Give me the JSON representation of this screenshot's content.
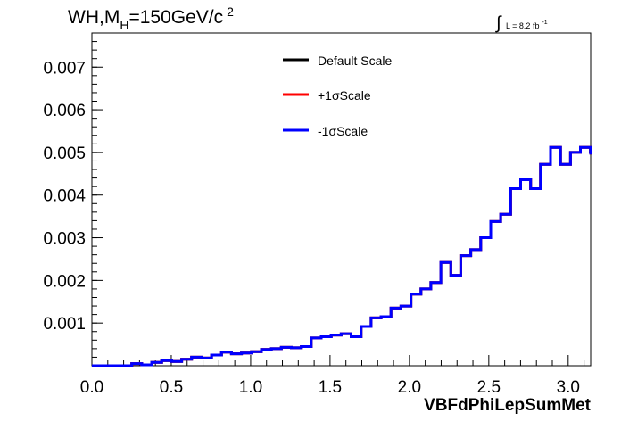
{
  "chart_data": {
    "type": "line",
    "title_main": "WH,M",
    "title_sub": "H",
    "title_rest": "=150GeV/c",
    "title_sup": "2",
    "lumi_prefix": "∫",
    "lumi_text": "L = 8.2 fb",
    "lumi_sup": "-1",
    "xlabel": "VBFdPhiLepSumMet",
    "ylabel": "",
    "xlim": [
      0,
      3.1416
    ],
    "ylim": [
      0,
      0.0078
    ],
    "x_ticks": [
      "0.0",
      "0.5",
      "1.0",
      "1.5",
      "2.0",
      "2.5",
      "3.0"
    ],
    "y_ticks": [
      "0.001",
      "0.002",
      "0.003",
      "0.004",
      "0.005",
      "0.006",
      "0.007"
    ],
    "legend_position": "top-center",
    "grid": false,
    "bin_edges_start": 0,
    "bin_width": 0.0628,
    "series": [
      {
        "name": "Default Scale",
        "color": "#000000"
      },
      {
        "name": "+1σScale",
        "color": "#ff0000"
      },
      {
        "name": "-1σScale",
        "color": "#0000ff"
      }
    ],
    "values": [
      0.0,
      0.0,
      0.0,
      0.0,
      5e-05,
      2e-05,
      8e-05,
      0.00012,
      0.0001,
      0.00015,
      0.0002,
      0.00018,
      0.00025,
      0.00032,
      0.00028,
      0.0003,
      0.00033,
      0.00038,
      0.0004,
      0.00043,
      0.00042,
      0.00045,
      0.00065,
      0.00068,
      0.00072,
      0.00075,
      0.00068,
      0.00092,
      0.00112,
      0.00115,
      0.00135,
      0.0014,
      0.00168,
      0.0018,
      0.00195,
      0.00242,
      0.00212,
      0.00258,
      0.00272,
      0.003,
      0.00338,
      0.00355,
      0.00415,
      0.00436,
      0.00415,
      0.00472,
      0.00512,
      0.00472,
      0.005,
      0.00512,
      0.005,
      0.00495
    ]
  }
}
